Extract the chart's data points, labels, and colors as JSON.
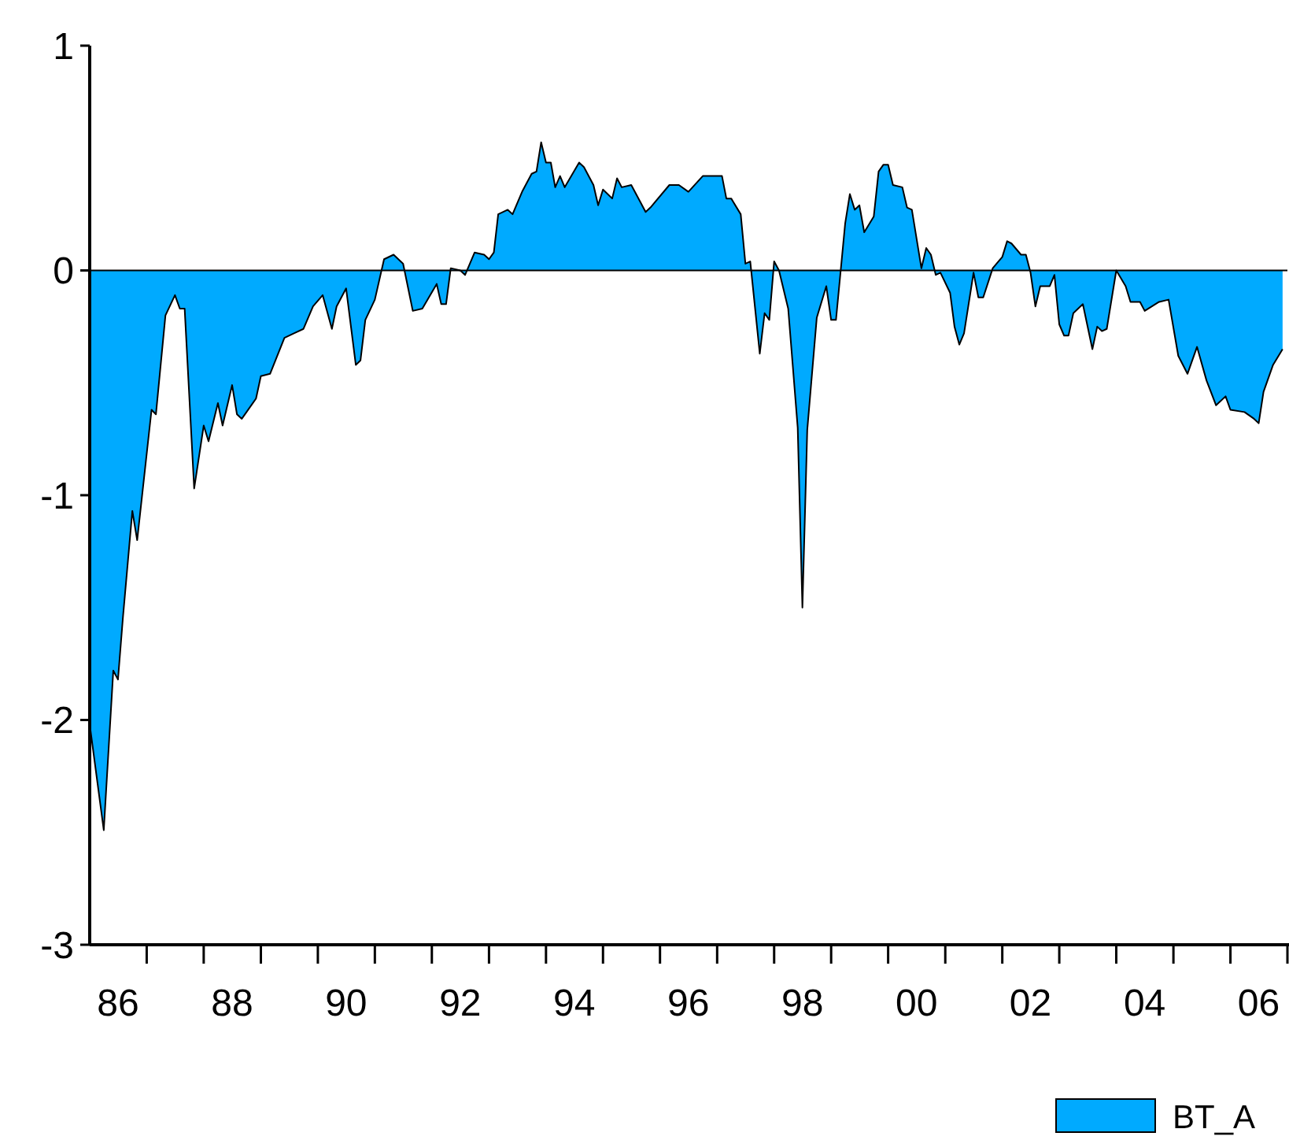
{
  "chart_data": {
    "type": "area",
    "xlim": [
      "1986",
      "2007"
    ],
    "ylim": [
      -3,
      1
    ],
    "yticks": [
      -3,
      -2,
      -1,
      0,
      1
    ],
    "xticks": [
      {
        "value": "1986-07",
        "label": "86"
      },
      {
        "value": "1987",
        "label": null
      },
      {
        "value": "1988",
        "label": null
      },
      {
        "value": "1988-07",
        "label": "88"
      },
      {
        "value": "1989",
        "label": null
      },
      {
        "value": "1990",
        "label": null
      },
      {
        "value": "1990-07",
        "label": "90"
      },
      {
        "value": "1991",
        "label": null
      },
      {
        "value": "1992",
        "label": null
      },
      {
        "value": "1992-07",
        "label": "92"
      },
      {
        "value": "1993",
        "label": null
      },
      {
        "value": "1994",
        "label": null
      },
      {
        "value": "1994-07",
        "label": "94"
      },
      {
        "value": "1995",
        "label": null
      },
      {
        "value": "1996",
        "label": null
      },
      {
        "value": "1996-07",
        "label": "96"
      },
      {
        "value": "1997",
        "label": null
      },
      {
        "value": "1998",
        "label": null
      },
      {
        "value": "1998-07",
        "label": "98"
      },
      {
        "value": "1999",
        "label": null
      },
      {
        "value": "2000",
        "label": null
      },
      {
        "value": "2000-07",
        "label": "00"
      },
      {
        "value": "2001",
        "label": null
      },
      {
        "value": "2002",
        "label": null
      },
      {
        "value": "2002-07",
        "label": "02"
      },
      {
        "value": "2003",
        "label": null
      },
      {
        "value": "2004",
        "label": null
      },
      {
        "value": "2004-07",
        "label": "04"
      },
      {
        "value": "2005",
        "label": null
      },
      {
        "value": "2006",
        "label": null
      },
      {
        "value": "2006-07",
        "label": "06"
      },
      {
        "value": "2007",
        "label": null
      }
    ],
    "x": [
      "1986-01",
      "1986-04",
      "1986-06",
      "1986-07",
      "1986-08",
      "1986-10",
      "1986-11",
      "1987-02",
      "1987-03",
      "1987-05",
      "1987-07",
      "1987-08",
      "1987-09",
      "1987-11",
      "1988-01",
      "1988-02",
      "1988-04",
      "1988-05",
      "1988-07",
      "1988-08",
      "1988-09",
      "1988-12",
      "1989-01",
      "1989-03",
      "1989-06",
      "1989-08",
      "1989-10",
      "1989-12",
      "1990-02",
      "1990-04",
      "1990-05",
      "1990-07",
      "1990-09",
      "1990-10",
      "1990-11",
      "1991-01",
      "1991-03",
      "1991-05",
      "1991-07",
      "1991-09",
      "1991-11",
      "1992-02",
      "1992-03",
      "1992-04",
      "1992-05",
      "1992-07",
      "1992-08",
      "1992-10",
      "1992-12",
      "1993-01",
      "1993-02",
      "1993-03",
      "1993-05",
      "1993-06",
      "1993-08",
      "1993-10",
      "1993-11",
      "1993-12",
      "1994-01",
      "1994-02",
      "1994-03",
      "1994-04",
      "1994-05",
      "1994-08",
      "1994-09",
      "1994-11",
      "1994-12",
      "1995-01",
      "1995-03",
      "1995-04",
      "1995-05",
      "1995-07",
      "1995-08",
      "1995-10",
      "1995-11",
      "1996-03",
      "1996-05",
      "1996-07",
      "1996-10",
      "1997-01",
      "1997-02",
      "1997-03",
      "1997-04",
      "1997-06",
      "1997-07",
      "1997-08",
      "1997-10",
      "1997-11",
      "1997-12",
      "1998-01",
      "1998-02",
      "1998-04",
      "1998-05",
      "1998-06",
      "1998-07",
      "1998-08",
      "1998-10",
      "1998-12",
      "1999-01",
      "1999-02",
      "1999-04",
      "1999-05",
      "1999-06",
      "1999-07",
      "1999-08",
      "1999-10",
      "1999-11",
      "1999-12",
      "2000-01",
      "2000-02",
      "2000-04",
      "2000-05",
      "2000-06",
      "2000-08",
      "2000-09",
      "2000-10",
      "2000-11",
      "2000-12",
      "2001-02",
      "2001-03",
      "2001-04",
      "2001-05",
      "2001-07",
      "2001-08",
      "2001-09",
      "2001-11",
      "2002-01",
      "2002-02",
      "2002-03",
      "2002-05",
      "2002-06",
      "2002-07",
      "2002-08",
      "2002-09",
      "2002-11",
      "2002-12",
      "2003-01",
      "2003-02",
      "2003-03",
      "2003-04",
      "2003-06",
      "2003-08",
      "2003-09",
      "2003-10",
      "2003-11",
      "2004-01",
      "2004-03",
      "2004-04",
      "2004-06",
      "2004-07",
      "2004-10",
      "2004-12",
      "2005-02",
      "2005-04",
      "2005-06",
      "2005-08",
      "2005-10",
      "2005-12",
      "2006-01",
      "2006-04",
      "2006-06",
      "2006-07",
      "2006-08",
      "2006-10",
      "2006-12"
    ],
    "series": [
      {
        "name": "BT_A",
        "color": "#00aaff",
        "values": [
          -2.02,
          -2.49,
          -1.78,
          -1.82,
          -1.55,
          -1.07,
          -1.2,
          -0.62,
          -0.64,
          -0.2,
          -0.11,
          -0.17,
          -0.17,
          -0.97,
          -0.69,
          -0.76,
          -0.59,
          -0.69,
          -0.51,
          -0.64,
          -0.66,
          -0.57,
          -0.47,
          -0.46,
          -0.3,
          -0.28,
          -0.26,
          -0.16,
          -0.11,
          -0.26,
          -0.16,
          -0.08,
          -0.42,
          -0.4,
          -0.22,
          -0.13,
          0.05,
          0.07,
          0.03,
          -0.18,
          -0.17,
          -0.06,
          -0.15,
          -0.15,
          0.01,
          0.0,
          -0.02,
          0.08,
          0.07,
          0.05,
          0.08,
          0.25,
          0.27,
          0.25,
          0.35,
          0.43,
          0.44,
          0.57,
          0.48,
          0.48,
          0.37,
          0.42,
          0.37,
          0.48,
          0.46,
          0.38,
          0.29,
          0.36,
          0.32,
          0.41,
          0.37,
          0.38,
          0.34,
          0.26,
          0.28,
          0.38,
          0.38,
          0.35,
          0.42,
          0.42,
          0.42,
          0.32,
          0.32,
          0.25,
          0.03,
          0.04,
          -0.37,
          -0.19,
          -0.22,
          0.04,
          0.0,
          -0.17,
          -0.43,
          -0.7,
          -1.5,
          -0.71,
          -0.21,
          -0.07,
          -0.22,
          -0.22,
          0.21,
          0.34,
          0.27,
          0.29,
          0.17,
          0.24,
          0.44,
          0.47,
          0.47,
          0.38,
          0.37,
          0.28,
          0.27,
          0.01,
          0.1,
          0.07,
          -0.02,
          -0.01,
          -0.1,
          -0.25,
          -0.33,
          -0.28,
          -0.01,
          -0.12,
          -0.12,
          0.01,
          0.06,
          0.13,
          0.12,
          0.07,
          0.07,
          -0.01,
          -0.16,
          -0.07,
          -0.07,
          -0.02,
          -0.24,
          -0.29,
          -0.29,
          -0.19,
          -0.15,
          -0.35,
          -0.25,
          -0.27,
          -0.26,
          0.0,
          -0.07,
          -0.14,
          -0.14,
          -0.18,
          -0.14,
          -0.13,
          -0.38,
          -0.46,
          -0.34,
          -0.49,
          -0.6,
          -0.56,
          -0.62,
          -0.63,
          -0.66,
          -0.68,
          -0.54,
          -0.42,
          -0.35
        ]
      }
    ],
    "ref_lines": [
      {
        "axis": "y",
        "value": 0,
        "color": "#000000"
      }
    ],
    "legend": "bottom right"
  }
}
